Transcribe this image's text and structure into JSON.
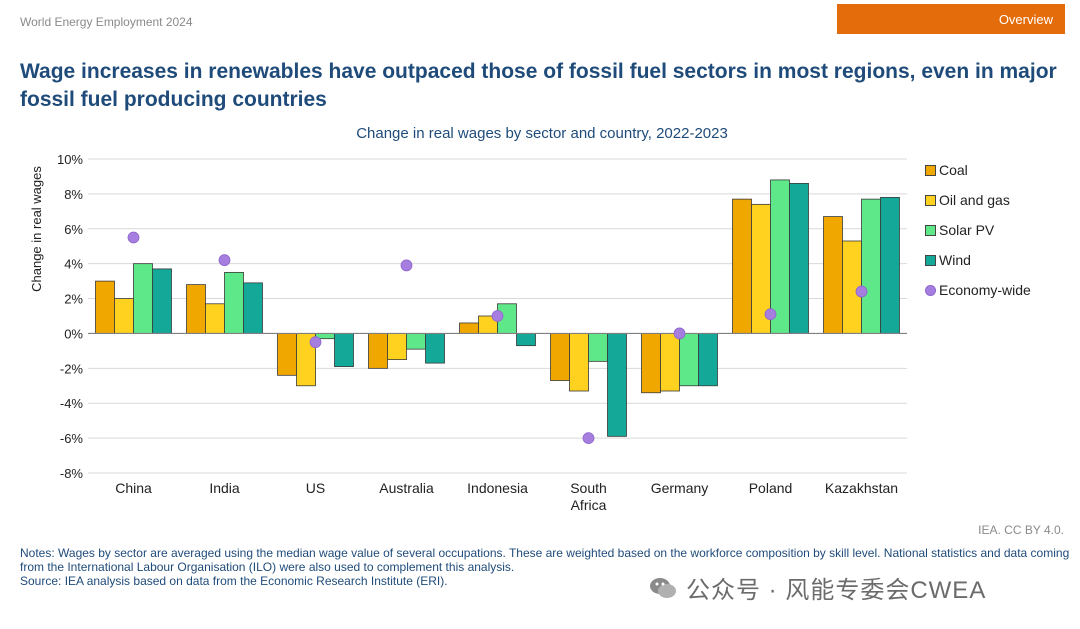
{
  "header": {
    "report_name": "World Energy Employment 2024",
    "tab_label": "Overview",
    "tab_color": "#e46c0a",
    "headline": "Wage increases in renewables have outpaced those of fossil fuel sectors in most regions, even in major fossil fuel producing countries"
  },
  "chart_data": {
    "type": "bar",
    "title": "Change in real wages by sector and country, 2022-2023",
    "ylabel": "Change in real wages",
    "ylim": [
      -8,
      10
    ],
    "yticks": [
      "10%",
      "8%",
      "6%",
      "4%",
      "2%",
      "0%",
      "-2%",
      "-4%",
      "-6%",
      "-8%"
    ],
    "grid": true,
    "legend_position": "right",
    "categories": [
      "China",
      "India",
      "US",
      "Australia",
      "Indonesia",
      "South Africa",
      "Germany",
      "Poland",
      "Kazakhstan"
    ],
    "series": [
      {
        "name": "Coal",
        "kind": "bar",
        "color": "#f0a800",
        "values": [
          3.0,
          2.8,
          -2.4,
          -2.0,
          0.6,
          -2.7,
          -3.4,
          7.7,
          6.7
        ]
      },
      {
        "name": "Oil and gas",
        "kind": "bar",
        "color": "#ffd21f",
        "values": [
          2.0,
          1.7,
          -3.0,
          -1.5,
          1.0,
          -3.3,
          -3.3,
          7.4,
          5.3
        ]
      },
      {
        "name": "Solar PV",
        "kind": "bar",
        "color": "#5fe88a",
        "values": [
          4.0,
          3.5,
          -0.3,
          -0.9,
          1.7,
          -1.6,
          -3.0,
          8.8,
          7.7
        ]
      },
      {
        "name": "Wind",
        "kind": "bar",
        "color": "#14a898",
        "values": [
          3.7,
          2.9,
          -1.9,
          -1.7,
          -0.7,
          -5.9,
          -3.0,
          8.6,
          7.8
        ]
      },
      {
        "name": "Economy-wide",
        "kind": "dot",
        "color": "#a57ee0",
        "values": [
          5.5,
          4.2,
          -0.5,
          3.9,
          1.0,
          -6.0,
          0.0,
          1.1,
          2.4
        ]
      }
    ]
  },
  "footer": {
    "credit": "IEA. CC BY 4.0.",
    "notes": "Notes: Wages by sector are averaged using the median wage value of several occupations. These are weighted based on the workforce composition by skill level. National statistics and data coming from the International Labour Organisation (ILO) were also used to complement this analysis.",
    "source": "Source: IEA analysis based on data from the Economic Research Institute (ERI).",
    "watermark": "公众号 · 风能专委会CWEA"
  }
}
